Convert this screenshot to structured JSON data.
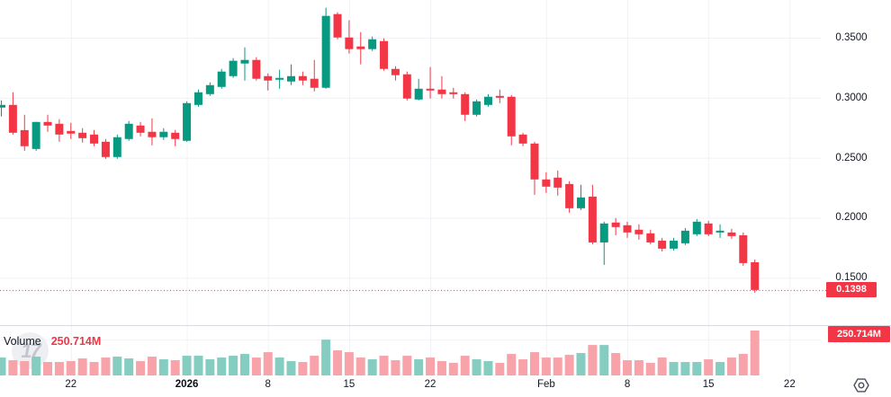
{
  "chart": {
    "watermark": "17",
    "legend": {
      "label": "Volume",
      "value": "250.714M"
    },
    "price_axis": {
      "ticks": [
        {
          "label": "0.3500",
          "price": 0.35
        },
        {
          "label": "0.3000",
          "price": 0.3
        },
        {
          "label": "0.2500",
          "price": 0.25
        },
        {
          "label": "0.2000",
          "price": 0.2
        },
        {
          "label": "0.1500",
          "price": 0.15
        }
      ],
      "last_price_label": "0.1398"
    },
    "volume_axis": {
      "last_volume_label": "250.714M",
      "grid_values_M": [
        200
      ]
    },
    "time_axis": {
      "ticks": [
        {
          "label": "22",
          "index": 6,
          "bold": false
        },
        {
          "label": "2026",
          "index": 16,
          "bold": true
        },
        {
          "label": "8",
          "index": 23,
          "bold": false
        },
        {
          "label": "15",
          "index": 30,
          "bold": false
        },
        {
          "label": "22",
          "index": 37,
          "bold": false
        },
        {
          "label": "Feb",
          "index": 47,
          "bold": false
        },
        {
          "label": "8",
          "index": 54,
          "bold": false
        },
        {
          "label": "15",
          "index": 61,
          "bold": false
        },
        {
          "label": "22",
          "index": 68,
          "bold": false
        }
      ]
    },
    "colors": {
      "up": "#089981",
      "down": "#f23645",
      "vol_up": "#85cdc1",
      "vol_down": "#f8a3aa",
      "grid": "#f0f2f6",
      "separator": "#d8dae2",
      "axis_text": "#131722",
      "badge_bg": "#f23645",
      "badge_text": "#ffffff",
      "dotted_line": "#f23645"
    }
  },
  "chart_data": {
    "type": "candlestick+volume",
    "interval": "1D",
    "price_ylim": [
      0.1195,
      0.3815
    ],
    "volume_ylim_M": [
      0,
      330
    ],
    "last_price": 0.1398,
    "last_volume_M": 250.714,
    "columns": [
      "date",
      "open",
      "high",
      "low",
      "close",
      "volume_M"
    ],
    "candles": [
      [
        "2025-12-16",
        0.2918,
        0.2978,
        0.2843,
        0.294,
        100
      ],
      [
        "2025-12-17",
        0.294,
        0.3045,
        0.2693,
        0.2708,
        85
      ],
      [
        "2025-12-18",
        0.273,
        0.2858,
        0.2558,
        0.2596,
        80
      ],
      [
        "2025-12-19",
        0.2573,
        0.2798,
        0.2558,
        0.2798,
        105
      ],
      [
        "2025-12-20",
        0.2798,
        0.2858,
        0.2716,
        0.2768,
        75
      ],
      [
        "2025-12-21",
        0.2783,
        0.2821,
        0.2633,
        0.2693,
        75
      ],
      [
        "2025-12-22",
        0.2723,
        0.2791,
        0.2656,
        0.2701,
        80
      ],
      [
        "2025-12-23",
        0.2708,
        0.2746,
        0.2626,
        0.2663,
        95
      ],
      [
        "2025-12-24",
        0.2693,
        0.2731,
        0.2596,
        0.2618,
        75
      ],
      [
        "2025-12-25",
        0.2633,
        0.2656,
        0.2491,
        0.2506,
        100
      ],
      [
        "2025-12-26",
        0.2506,
        0.2693,
        0.2491,
        0.2671,
        105
      ],
      [
        "2025-12-27",
        0.2656,
        0.2806,
        0.2641,
        0.2783,
        95
      ],
      [
        "2025-12-28",
        0.2768,
        0.2798,
        0.2678,
        0.2708,
        80
      ],
      [
        "2025-12-29",
        0.2716,
        0.2828,
        0.2603,
        0.2671,
        105
      ],
      [
        "2025-12-30",
        0.2671,
        0.2746,
        0.2648,
        0.2716,
        90
      ],
      [
        "2025-12-31",
        0.2708,
        0.2731,
        0.2596,
        0.2656,
        85
      ],
      [
        "2026-01-01",
        0.2641,
        0.297,
        0.2633,
        0.2955,
        110
      ],
      [
        "2026-01-02",
        0.294,
        0.3068,
        0.2925,
        0.3045,
        110
      ],
      [
        "2026-01-03",
        0.303,
        0.3128,
        0.3015,
        0.3105,
        90
      ],
      [
        "2026-01-04",
        0.309,
        0.324,
        0.3075,
        0.3218,
        100
      ],
      [
        "2026-01-05",
        0.318,
        0.333,
        0.3165,
        0.3308,
        110
      ],
      [
        "2026-01-06",
        0.3285,
        0.342,
        0.3143,
        0.3315,
        120
      ],
      [
        "2026-01-07",
        0.3315,
        0.3338,
        0.3143,
        0.3158,
        100
      ],
      [
        "2026-01-08",
        0.318,
        0.3203,
        0.306,
        0.3143,
        130
      ],
      [
        "2026-01-09",
        0.315,
        0.3233,
        0.3075,
        0.3165,
        100
      ],
      [
        "2026-01-10",
        0.3135,
        0.3278,
        0.3105,
        0.318,
        80
      ],
      [
        "2026-01-11",
        0.318,
        0.3218,
        0.3105,
        0.3143,
        75
      ],
      [
        "2026-01-12",
        0.3158,
        0.3315,
        0.3053,
        0.3083,
        110
      ],
      [
        "2026-01-13",
        0.3083,
        0.375,
        0.3075,
        0.3682,
        200
      ],
      [
        "2026-01-14",
        0.3697,
        0.3712,
        0.3487,
        0.3502,
        140
      ],
      [
        "2026-01-15",
        0.3502,
        0.3645,
        0.3368,
        0.3405,
        130
      ],
      [
        "2026-01-16",
        0.3427,
        0.3547,
        0.3278,
        0.3405,
        100
      ],
      [
        "2026-01-17",
        0.3405,
        0.351,
        0.339,
        0.3487,
        90
      ],
      [
        "2026-01-18",
        0.3472,
        0.3495,
        0.3225,
        0.324,
        110
      ],
      [
        "2026-01-19",
        0.324,
        0.3263,
        0.3143,
        0.3188,
        85
      ],
      [
        "2026-01-20",
        0.3195,
        0.3218,
        0.2978,
        0.2993,
        110
      ],
      [
        "2026-01-21",
        0.2985,
        0.3158,
        0.2978,
        0.3075,
        90
      ],
      [
        "2026-01-22",
        0.3075,
        0.3255,
        0.2993,
        0.306,
        100
      ],
      [
        "2026-01-23",
        0.3068,
        0.318,
        0.2993,
        0.303,
        80
      ],
      [
        "2026-01-24",
        0.3045,
        0.3083,
        0.2993,
        0.303,
        70
      ],
      [
        "2026-01-25",
        0.303,
        0.3045,
        0.2806,
        0.2858,
        110
      ],
      [
        "2026-01-26",
        0.2858,
        0.2985,
        0.2843,
        0.297,
        90
      ],
      [
        "2026-01-27",
        0.294,
        0.303,
        0.2925,
        0.3008,
        80
      ],
      [
        "2026-01-28",
        0.3015,
        0.3068,
        0.2955,
        0.3,
        70
      ],
      [
        "2026-01-29",
        0.3008,
        0.3023,
        0.2603,
        0.2678,
        120
      ],
      [
        "2026-01-30",
        0.2693,
        0.2708,
        0.2596,
        0.2618,
        90
      ],
      [
        "2026-01-31",
        0.2618,
        0.2633,
        0.2191,
        0.2319,
        130
      ],
      [
        "2026-02-01",
        0.2319,
        0.2379,
        0.2206,
        0.2259,
        100
      ],
      [
        "2026-02-02",
        0.2334,
        0.2394,
        0.2184,
        0.2251,
        100
      ],
      [
        "2026-02-03",
        0.2281,
        0.2304,
        0.2042,
        0.2079,
        115
      ],
      [
        "2026-02-04",
        0.2079,
        0.2274,
        0.2064,
        0.2169,
        125
      ],
      [
        "2026-02-05",
        0.2176,
        0.2274,
        0.1779,
        0.1794,
        170
      ],
      [
        "2026-02-06",
        0.1794,
        0.1967,
        0.1607,
        0.1952,
        170
      ],
      [
        "2026-02-07",
        0.196,
        0.1997,
        0.1854,
        0.1922,
        125
      ],
      [
        "2026-02-08",
        0.1937,
        0.1967,
        0.1832,
        0.1877,
        85
      ],
      [
        "2026-02-09",
        0.19,
        0.1945,
        0.1817,
        0.1862,
        85
      ],
      [
        "2026-02-10",
        0.187,
        0.19,
        0.1779,
        0.1794,
        70
      ],
      [
        "2026-02-11",
        0.1809,
        0.1832,
        0.1719,
        0.1742,
        100
      ],
      [
        "2026-02-12",
        0.1742,
        0.1832,
        0.1727,
        0.1809,
        75
      ],
      [
        "2026-02-13",
        0.1787,
        0.1914,
        0.1772,
        0.1892,
        75
      ],
      [
        "2026-02-14",
        0.1862,
        0.1989,
        0.1847,
        0.1967,
        75
      ],
      [
        "2026-02-15",
        0.1952,
        0.1974,
        0.1847,
        0.1862,
        90
      ],
      [
        "2026-02-16",
        0.1877,
        0.1945,
        0.1832,
        0.1892,
        75
      ],
      [
        "2026-02-17",
        0.1877,
        0.1907,
        0.1824,
        0.1847,
        100
      ],
      [
        "2026-02-18",
        0.1854,
        0.1877,
        0.16,
        0.1622,
        120
      ],
      [
        "2026-02-19",
        0.1629,
        0.1652,
        0.1375,
        0.1398,
        250.714
      ]
    ]
  }
}
